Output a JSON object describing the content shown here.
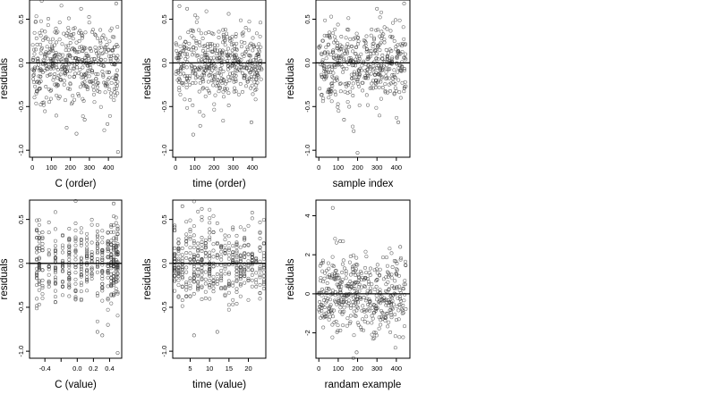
{
  "figure": {
    "rows": 2,
    "cols": 3,
    "point_color": "#333333",
    "line_color": "#000000"
  },
  "chart_data": [
    {
      "type": "scatter",
      "xlabel": "C (order)",
      "ylabel": "residuals",
      "xlim": [
        -15,
        470
      ],
      "ylim": [
        -1.08,
        0.72
      ],
      "xticks": [
        0,
        100,
        200,
        300,
        400
      ],
      "xtick_labels": [
        "0",
        "100",
        "200",
        "300",
        "400"
      ],
      "yticks": [
        -1.0,
        -0.5,
        0.0,
        0.5
      ],
      "ytick_labels": [
        "-1.0",
        "-0.5",
        "0.0",
        "0.5"
      ],
      "reference_line": 0,
      "n_points": 450,
      "x_range": [
        0,
        449
      ],
      "y_spread": 0.22,
      "series": [
        {
          "x": [
            0,
            450
          ],
          "y": [
            0.02,
            0.01
          ]
        },
        {
          "x": [
            232,
            450,
            275,
            441,
            395,
            256
          ],
          "y": [
            -0.81,
            -1.02,
            -0.65,
            0.68,
            -0.7,
            0.62
          ]
        }
      ]
    },
    {
      "type": "scatter",
      "xlabel": "time (order)",
      "ylabel": "residuals",
      "xlim": [
        -15,
        470
      ],
      "ylim": [
        -1.08,
        0.72
      ],
      "xticks": [
        0,
        100,
        200,
        300,
        400
      ],
      "xtick_labels": [
        "0",
        "100",
        "200",
        "300",
        "400"
      ],
      "yticks": [
        -1.0,
        -0.5,
        0.0,
        0.5
      ],
      "ytick_labels": [
        "-1.0",
        "-0.5",
        "0.0",
        "0.5"
      ],
      "reference_line": 0,
      "n_points": 450,
      "x_range": [
        0,
        449
      ],
      "y_spread": 0.22,
      "series": [
        {
          "x": [
            0,
            450
          ],
          "y": [
            0.0,
            0.0
          ]
        },
        {
          "x": [
            92,
            128,
            20,
            60,
            395
          ],
          "y": [
            -0.82,
            -0.72,
            0.65,
            0.62,
            -0.68
          ]
        }
      ]
    },
    {
      "type": "scatter",
      "xlabel": "sample index",
      "ylabel": "residuals",
      "xlim": [
        -15,
        470
      ],
      "ylim": [
        -1.08,
        0.72
      ],
      "xticks": [
        0,
        100,
        200,
        300,
        400
      ],
      "xtick_labels": [
        "0",
        "100",
        "200",
        "300",
        "400"
      ],
      "yticks": [
        -1.0,
        -0.5,
        0.0,
        0.5
      ],
      "ytick_labels": [
        "-1.0",
        "-0.5",
        "0.0",
        "0.5"
      ],
      "reference_line": 0,
      "n_points": 450,
      "x_range": [
        0,
        449
      ],
      "y_spread": 0.22,
      "series": [
        {
          "x": [
            0,
            450
          ],
          "y": [
            0.0,
            0.0
          ]
        },
        {
          "x": [
            200,
            180,
            130,
            410,
            440,
            300
          ],
          "y": [
            -1.03,
            -0.78,
            -0.65,
            -0.68,
            0.68,
            0.62
          ]
        }
      ]
    },
    {
      "type": "scatter",
      "xlabel": "C (value)",
      "ylabel": "residuals",
      "xlim": [
        -0.59,
        0.55
      ],
      "ylim": [
        -1.08,
        0.72
      ],
      "xticks": [
        -0.4,
        0.0,
        0.2,
        0.4
      ],
      "xtick_labels": [
        "-0.4",
        "0.0",
        "0.2",
        "0.4"
      ],
      "minor_xticks": [
        -0.2
      ],
      "yticks": [
        -1.0,
        -0.5,
        0.0,
        0.5
      ],
      "ytick_labels": [
        "-1.0",
        "-0.5",
        "0.0",
        "0.5"
      ],
      "reference_line": 0,
      "n_points": 450,
      "x_levels": [
        -0.5,
        -0.47,
        -0.43,
        -0.35,
        -0.27,
        -0.18,
        -0.1,
        -0.02,
        0.05,
        0.12,
        0.18,
        0.25,
        0.31,
        0.38,
        0.42,
        0.45,
        0.48,
        0.5
      ],
      "y_spread": 0.22,
      "series": [
        {
          "x": [
            -0.6,
            0.55
          ],
          "y": [
            0.0,
            0.0
          ]
        },
        {
          "x": [
            0.5,
            0.25,
            0.31,
            0.45,
            0.38
          ],
          "y": [
            -1.02,
            -0.78,
            -0.82,
            0.68,
            -0.7
          ]
        }
      ]
    },
    {
      "type": "scatter",
      "xlabel": "time (value)",
      "ylabel": "residuals",
      "xlim": [
        0.5,
        24.5
      ],
      "ylim": [
        -1.08,
        0.72
      ],
      "xticks": [
        5,
        10,
        15,
        20
      ],
      "xtick_labels": [
        "5",
        "10",
        "15",
        "20"
      ],
      "yticks": [
        -1.0,
        -0.5,
        0.0,
        0.5
      ],
      "ytick_labels": [
        "-1.0",
        "-0.5",
        "0.0",
        "0.5"
      ],
      "reference_line": 0,
      "n_points": 450,
      "x_levels": [
        1,
        2,
        3,
        4,
        5,
        6,
        7,
        8,
        9,
        10,
        11,
        12,
        13,
        14,
        15,
        16,
        17,
        18,
        19,
        20,
        21,
        22,
        23,
        24
      ],
      "y_spread": 0.22,
      "series": [
        {
          "x": [
            0,
            25
          ],
          "y": [
            0.0,
            0.0
          ]
        },
        {
          "x": [
            6,
            12,
            3,
            8
          ],
          "y": [
            -0.82,
            -0.78,
            0.65,
            0.62
          ]
        }
      ]
    },
    {
      "type": "scatter",
      "xlabel": "randam example",
      "ylabel": "residuals",
      "xlim": [
        -15,
        470
      ],
      "ylim": [
        -3.3,
        4.8
      ],
      "xticks": [
        0,
        100,
        200,
        300,
        400
      ],
      "xtick_labels": [
        "0",
        "100",
        "200",
        "300",
        "400"
      ],
      "yticks": [
        -2,
        0,
        2,
        4
      ],
      "ytick_labels": [
        "-2",
        "0",
        "2",
        "4"
      ],
      "reference_line": 0,
      "n_points": 450,
      "x_range": [
        0,
        449
      ],
      "y_spread": 1.0,
      "series": [
        {
          "x": [
            0,
            450
          ],
          "y": [
            0.0,
            0.0
          ]
        },
        {
          "x": [
            72,
            195,
            110,
            420
          ],
          "y": [
            4.4,
            -3.0,
            2.7,
            2.4
          ]
        }
      ]
    }
  ]
}
